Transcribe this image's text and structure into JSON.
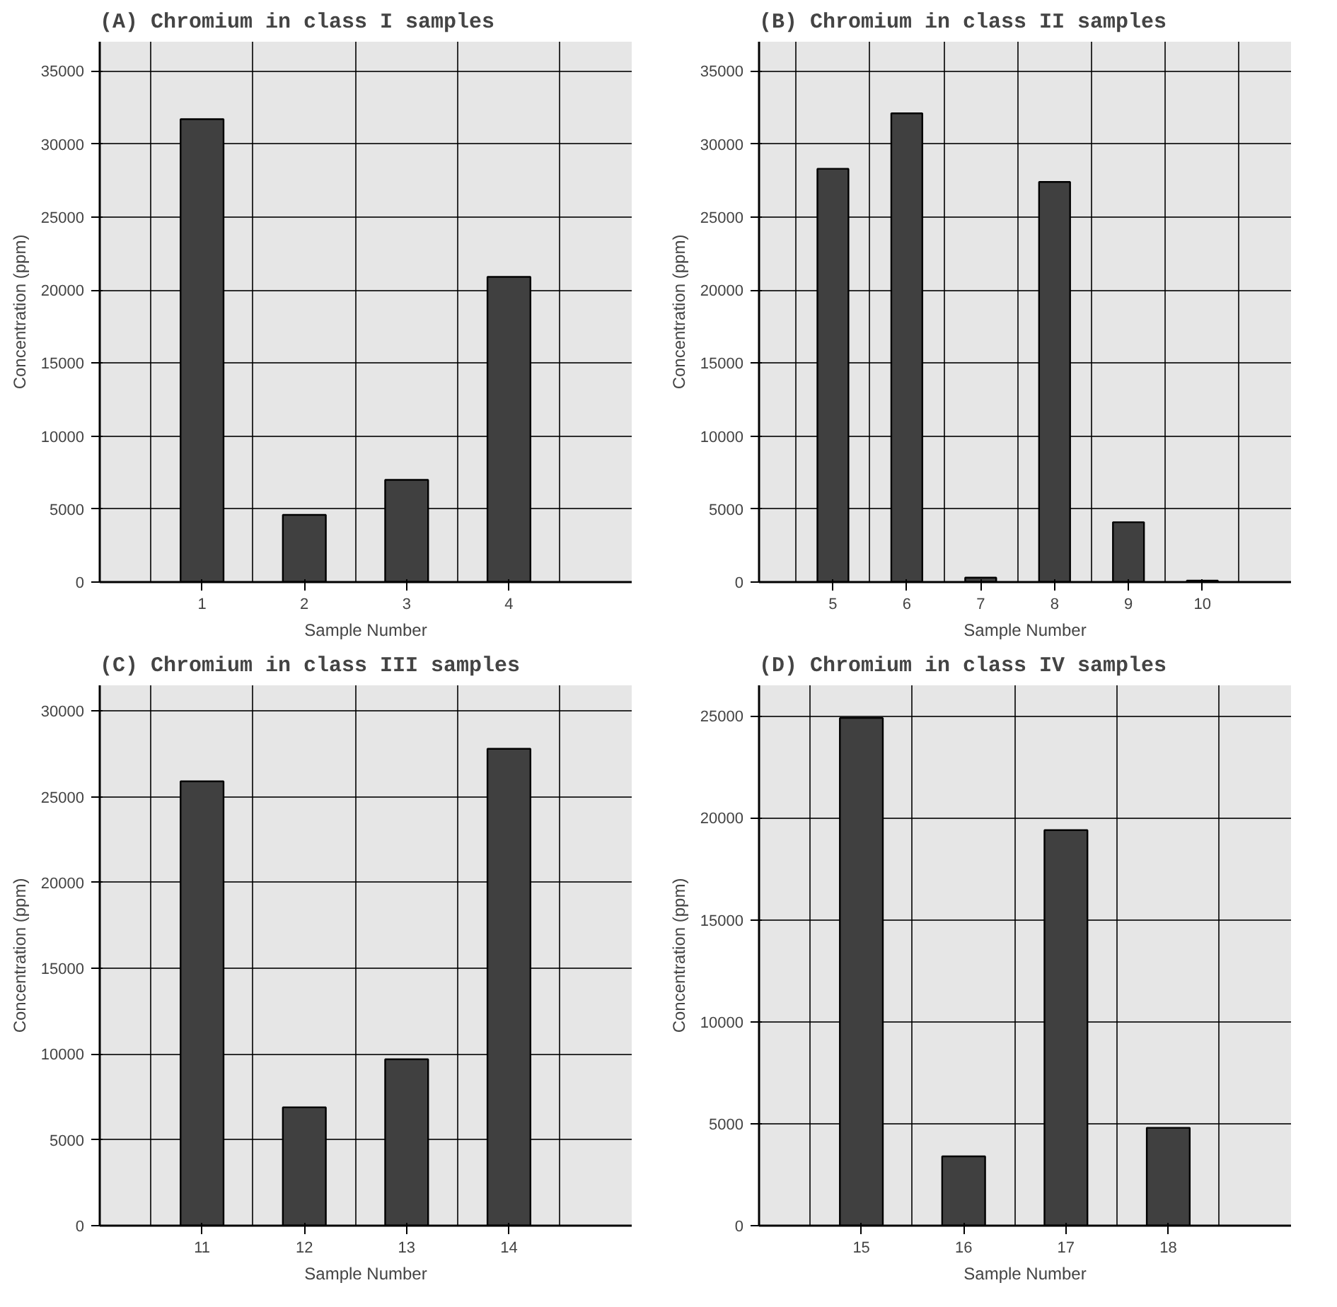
{
  "chart_data": [
    {
      "type": "bar",
      "title": "(A) Chromium in class I samples",
      "xlabel": "Sample Number",
      "ylabel": "Concentration (ppm)",
      "categories": [
        "1",
        "2",
        "3",
        "4"
      ],
      "values": [
        31700,
        4600,
        7000,
        20900
      ],
      "color": "#404040",
      "ylim": [
        0,
        37000
      ],
      "yticks": [
        0,
        5000,
        10000,
        15000,
        20000,
        25000,
        30000,
        35000
      ],
      "grid": true
    },
    {
      "type": "bar",
      "title": "(B) Chromium in class II samples",
      "xlabel": "Sample Number",
      "ylabel": "Concentration (ppm)",
      "categories": [
        "5",
        "6",
        "7",
        "8",
        "9",
        "10"
      ],
      "values": [
        28300,
        32100,
        300,
        27400,
        4100,
        100
      ],
      "color": "#404040",
      "ylim": [
        0,
        37000
      ],
      "yticks": [
        0,
        5000,
        10000,
        15000,
        20000,
        25000,
        30000,
        35000
      ],
      "grid": true
    },
    {
      "type": "bar",
      "title": "(C) Chromium in class III samples",
      "xlabel": "Sample Number",
      "ylabel": "Concentration (ppm)",
      "categories": [
        "11",
        "12",
        "13",
        "14"
      ],
      "values": [
        25900,
        6900,
        9700,
        27800
      ],
      "color": "#404040",
      "ylim": [
        0,
        31500
      ],
      "yticks": [
        0,
        5000,
        10000,
        15000,
        20000,
        25000,
        30000
      ],
      "grid": true
    },
    {
      "type": "bar",
      "title": "(D) Chromium in class IV samples",
      "xlabel": "Sample Number",
      "ylabel": "Concentration (ppm)",
      "categories": [
        "15",
        "16",
        "17",
        "18"
      ],
      "values": [
        24900,
        3400,
        19400,
        4800
      ],
      "color": "#404040",
      "ylim": [
        0,
        26500
      ],
      "yticks": [
        0,
        5000,
        10000,
        15000,
        20000,
        25000
      ],
      "grid": true
    }
  ]
}
